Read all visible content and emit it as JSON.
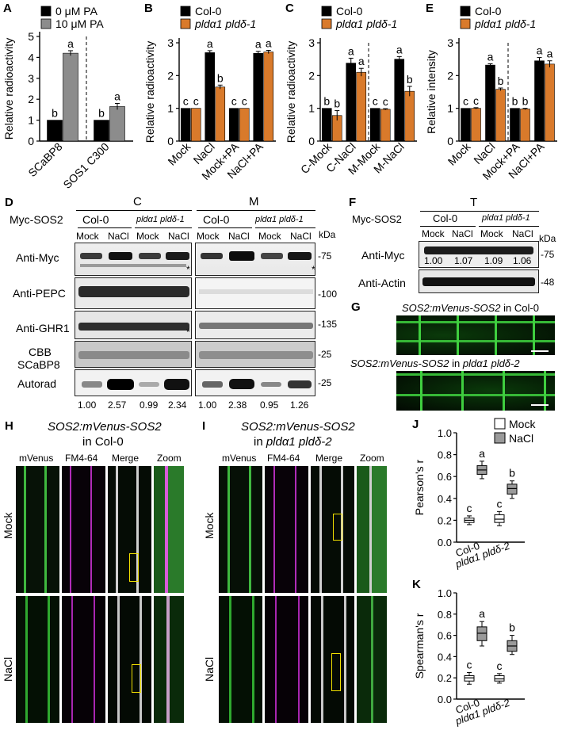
{
  "colors": {
    "col0": "#000000",
    "mutant": "#d97a2b",
    "pa10": "#8c8c8c",
    "pa0": "#000000",
    "mock_box": "#ffffff",
    "nacl_box": "#9a9a9a"
  },
  "panels": {
    "A": {
      "letter": "A",
      "ylabel": "Relative radioactivity",
      "legend": [
        "0 μM PA",
        "10 μM PA"
      ]
    },
    "B": {
      "letter": "B",
      "ylabel": "Relative radioactivity",
      "legend": [
        "Col-0",
        "pldα1 pldδ-1"
      ]
    },
    "C": {
      "letter": "C",
      "ylabel": "Relative radioactivity",
      "legend": [
        "Col-0",
        "pldα1 pldδ-1"
      ]
    },
    "E": {
      "letter": "E",
      "ylabel": "Relative intensity",
      "legend": [
        "Col-0",
        "pldα1 pldδ-1"
      ]
    },
    "D": {
      "letter": "D",
      "frac_c": "C",
      "frac_m": "M",
      "myc_sos2": "Myc-SOS2",
      "col0": "Col-0",
      "mutant": "pldα1 pldδ-1",
      "treat": [
        "Mock",
        "NaCl",
        "Mock",
        "NaCl"
      ],
      "kda": "kDa",
      "rows": [
        "Anti-Myc",
        "Anti-PEPC",
        "Anti-GHR1",
        "CBB",
        "SCaBP8",
        "Autorad"
      ],
      "mw": [
        "75",
        "100",
        "135",
        "25",
        "25"
      ],
      "star": "*",
      "quant_c": [
        "1.00",
        "2.57",
        "0.99",
        "2.34"
      ],
      "quant_m": [
        "1.00",
        "2.38",
        "0.95",
        "1.26"
      ]
    },
    "F": {
      "letter": "F",
      "frac_t": "T",
      "myc_sos2": "Myc-SOS2",
      "col0": "Col-0",
      "mutant": "pldα1 pldδ-1",
      "treat": [
        "Mock",
        "NaCl",
        "Mock",
        "NaCl"
      ],
      "kda": "kDa",
      "rows": [
        "Anti-Myc",
        "Anti-Actin"
      ],
      "mw": [
        "75",
        "48"
      ],
      "quant": [
        "1.00",
        "1.07",
        "1.09",
        "1.06"
      ]
    },
    "G": {
      "letter": "G",
      "line1": "SOS2:mVenus-SOS2",
      "line1b": " in Col-0",
      "line2": "SOS2:mVenus-SOS2",
      "line2b": " in ",
      "line2c": "pldα1 pldδ-2"
    },
    "H": {
      "letter": "H",
      "title1": "SOS2:mVenus-SOS2",
      "title2": "in Col-0",
      "cols": [
        "mVenus",
        "FM4-64",
        "Merge",
        "Zoom"
      ],
      "rows": [
        "Mock",
        "NaCl"
      ]
    },
    "I": {
      "letter": "I",
      "title1": "SOS2:mVenus-SOS2",
      "title2a": "in ",
      "title2b": "pldα1 pldδ-2",
      "cols": [
        "mVenus",
        "FM4-64",
        "Merge",
        "Zoom"
      ],
      "rows": [
        "Mock",
        "NaCl"
      ]
    },
    "J": {
      "letter": "J",
      "ylabel": "Pearson's r",
      "legend": [
        "Mock",
        "NaCl"
      ]
    },
    "K": {
      "letter": "K",
      "ylabel": "Spearman's r"
    }
  },
  "chart_data": [
    {
      "panel": "A",
      "type": "bar",
      "categories": [
        "SCaBP8",
        "SOS1 C300"
      ],
      "series": [
        {
          "name": "0 μM PA",
          "values": [
            1.0,
            1.0
          ],
          "err": [
            0,
            0
          ],
          "sig": [
            "b",
            "b"
          ]
        },
        {
          "name": "10 μM PA",
          "values": [
            4.2,
            1.65
          ],
          "err": [
            0.12,
            0.15
          ],
          "sig": [
            "a",
            "a"
          ]
        }
      ],
      "ylabel": "Relative radioactivity",
      "ylim": [
        0,
        5
      ],
      "yticks": [
        0,
        1,
        2,
        3,
        4,
        5
      ]
    },
    {
      "panel": "B",
      "type": "bar",
      "categories": [
        "Mock",
        "NaCl",
        "Mock+PA",
        "NaCl+PA"
      ],
      "series": [
        {
          "name": "Col-0",
          "values": [
            1.0,
            2.7,
            1.0,
            2.68
          ],
          "err": [
            0,
            0.06,
            0,
            0.06
          ],
          "sig": [
            "c",
            "a",
            "c",
            "a"
          ]
        },
        {
          "name": "pldα1 pldδ-1",
          "values": [
            1.0,
            1.65,
            1.0,
            2.72
          ],
          "err": [
            0,
            0.06,
            0,
            0.05
          ],
          "sig": [
            "c",
            "b",
            "c",
            "a"
          ]
        }
      ],
      "ylabel": "Relative radioactivity",
      "ylim": [
        0,
        3
      ],
      "yticks": [
        0,
        1,
        2,
        3
      ]
    },
    {
      "panel": "C",
      "type": "bar",
      "categories": [
        "C-Mock",
        "C-NaCl",
        "M-Mock",
        "M-NaCl"
      ],
      "series": [
        {
          "name": "Col-0",
          "values": [
            1.0,
            2.38,
            1.0,
            2.5
          ],
          "err": [
            0,
            0.15,
            0,
            0.08
          ],
          "sig": [
            "b",
            "a",
            "c",
            "a"
          ]
        },
        {
          "name": "pldα1 pldδ-1",
          "values": [
            0.78,
            2.1,
            0.97,
            1.52
          ],
          "err": [
            0.15,
            0.12,
            0.02,
            0.15
          ],
          "sig": [
            "b",
            "a",
            "c",
            "b"
          ]
        }
      ],
      "ylabel": "Relative radioactivity",
      "ylim": [
        0,
        3
      ],
      "yticks": [
        0,
        1,
        2,
        3
      ]
    },
    {
      "panel": "E",
      "type": "bar",
      "categories": [
        "Mock",
        "NaCl",
        "Mock+PA",
        "NaCl+PA"
      ],
      "series": [
        {
          "name": "Col-0",
          "values": [
            1.0,
            2.32,
            1.0,
            2.45
          ],
          "err": [
            0,
            0.04,
            0,
            0.1
          ],
          "sig": [
            "c",
            "a",
            "b",
            "a"
          ]
        },
        {
          "name": "pldα1 pldδ-1",
          "values": [
            1.0,
            1.58,
            0.98,
            2.35
          ],
          "err": [
            0.02,
            0.04,
            0.02,
            0.1
          ],
          "sig": [
            "c",
            "b",
            "b",
            "a"
          ]
        }
      ],
      "ylabel": "Relative intensity",
      "ylim": [
        0,
        3
      ],
      "yticks": [
        0,
        1,
        2,
        3
      ]
    },
    {
      "panel": "J",
      "type": "box",
      "categories": [
        "Col-0",
        "pldα1 pldδ-2"
      ],
      "series": [
        {
          "name": "Mock",
          "boxes": [
            {
              "min": 0.16,
              "q1": 0.18,
              "med": 0.2,
              "q3": 0.22,
              "max": 0.24
            },
            {
              "min": 0.15,
              "q1": 0.18,
              "med": 0.21,
              "q3": 0.25,
              "max": 0.28
            }
          ],
          "sig": [
            "c",
            "c"
          ]
        },
        {
          "name": "NaCl",
          "boxes": [
            {
              "min": 0.58,
              "q1": 0.62,
              "med": 0.66,
              "q3": 0.7,
              "max": 0.74
            },
            {
              "min": 0.4,
              "q1": 0.44,
              "med": 0.49,
              "q3": 0.53,
              "max": 0.56
            }
          ],
          "sig": [
            "a",
            "b"
          ]
        }
      ],
      "ylabel": "Pearson's r",
      "ylim": [
        0,
        1.0
      ],
      "yticks": [
        0,
        0.2,
        0.4,
        0.6,
        0.8,
        1.0
      ]
    },
    {
      "panel": "K",
      "type": "box",
      "categories": [
        "Col-0",
        "pldα1 pldδ-2"
      ],
      "series": [
        {
          "name": "Mock",
          "boxes": [
            {
              "min": 0.14,
              "q1": 0.17,
              "med": 0.2,
              "q3": 0.22,
              "max": 0.25
            },
            {
              "min": 0.15,
              "q1": 0.17,
              "med": 0.19,
              "q3": 0.22,
              "max": 0.24
            }
          ],
          "sig": [
            "c",
            "c"
          ]
        },
        {
          "name": "NaCl",
          "boxes": [
            {
              "min": 0.5,
              "q1": 0.55,
              "med": 0.62,
              "q3": 0.68,
              "max": 0.73
            },
            {
              "min": 0.42,
              "q1": 0.45,
              "med": 0.5,
              "q3": 0.55,
              "max": 0.6
            }
          ],
          "sig": [
            "a",
            "b"
          ]
        }
      ],
      "ylabel": "Spearman's r",
      "ylim": [
        0,
        1.0
      ],
      "yticks": [
        0,
        0.2,
        0.4,
        0.6,
        0.8,
        1.0
      ]
    }
  ]
}
